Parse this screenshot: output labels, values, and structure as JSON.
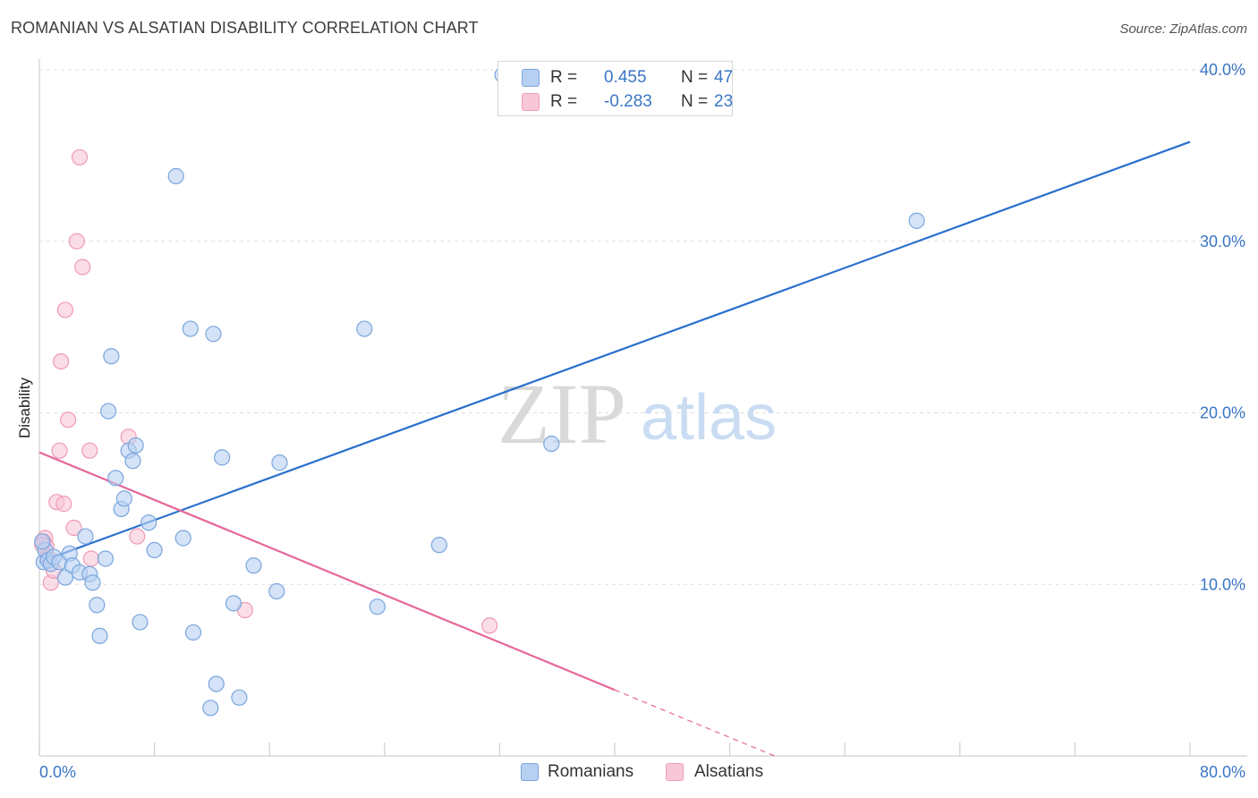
{
  "header": {
    "title": "ROMANIAN VS ALSATIAN DISABILITY CORRELATION CHART",
    "source": "Source: ZipAtlas.com"
  },
  "watermark": {
    "zip": "ZIP",
    "atlas": "atlas"
  },
  "legend": {
    "items": [
      {
        "r_label": "R =",
        "r_value": "0.455",
        "n_label": "N =",
        "n_value": "47"
      },
      {
        "r_label": "R =",
        "r_value": "-0.283",
        "n_label": "N =",
        "n_value": "23"
      }
    ]
  },
  "bottom_legend": {
    "romanians": "Romanians",
    "alsatians": "Alsatians"
  },
  "colors": {
    "romanians_fill": "#b7d0f2",
    "romanians_stroke": "#7aa5de",
    "romanians_line": "#2a6fcd",
    "alsatians_fill": "#f8c7d7",
    "alsatians_stroke": "#ef9ab6",
    "alsatians_line": "#e5679a",
    "tick_label": "#3a76c4",
    "grid": "#dedede"
  },
  "chart_data": {
    "type": "scatter",
    "title": "ROMANIAN VS ALSATIAN DISABILITY CORRELATION CHART",
    "xlabel": "",
    "ylabel": "Disability",
    "xlim": [
      0,
      80
    ],
    "ylim": [
      0,
      40
    ],
    "x_tick_labels": [
      "0.0%",
      "80.0%"
    ],
    "y_ticks": [
      10,
      20,
      30,
      40
    ],
    "y_tick_labels": [
      "10.0%",
      "20.0%",
      "30.0%",
      "40.0%"
    ],
    "grid": true,
    "series": [
      {
        "name": "Romanians",
        "r": 0.455,
        "n": 47,
        "trend": {
          "x0": 0,
          "y0": 11.3,
          "x1": 80,
          "y1": 35.8,
          "solid_to_x": 80
        },
        "points": [
          [
            0.3,
            11.3
          ],
          [
            0.4,
            12.0
          ],
          [
            0.6,
            11.4
          ],
          [
            0.8,
            11.2
          ],
          [
            1.0,
            11.6
          ],
          [
            1.4,
            11.3
          ],
          [
            1.8,
            10.4
          ],
          [
            2.1,
            11.8
          ],
          [
            2.3,
            11.1
          ],
          [
            2.8,
            10.7
          ],
          [
            3.2,
            12.8
          ],
          [
            3.5,
            10.6
          ],
          [
            3.7,
            10.1
          ],
          [
            4.0,
            8.8
          ],
          [
            4.2,
            7.0
          ],
          [
            4.6,
            11.5
          ],
          [
            4.8,
            20.1
          ],
          [
            5.0,
            23.3
          ],
          [
            5.3,
            16.2
          ],
          [
            5.7,
            14.4
          ],
          [
            5.9,
            15.0
          ],
          [
            6.2,
            17.8
          ],
          [
            6.5,
            17.2
          ],
          [
            6.7,
            18.1
          ],
          [
            7.0,
            7.8
          ],
          [
            7.6,
            13.6
          ],
          [
            8.0,
            12.0
          ],
          [
            9.5,
            33.8
          ],
          [
            10.0,
            12.7
          ],
          [
            10.5,
            24.9
          ],
          [
            10.7,
            7.2
          ],
          [
            11.9,
            2.8
          ],
          [
            12.1,
            24.6
          ],
          [
            12.3,
            4.2
          ],
          [
            12.7,
            17.4
          ],
          [
            13.5,
            8.9
          ],
          [
            13.9,
            3.4
          ],
          [
            14.9,
            11.1
          ],
          [
            16.5,
            9.6
          ],
          [
            16.7,
            17.1
          ],
          [
            22.6,
            24.9
          ],
          [
            23.5,
            8.7
          ],
          [
            27.8,
            12.3
          ],
          [
            32.2,
            39.7
          ],
          [
            35.6,
            18.2
          ],
          [
            61.0,
            31.2
          ],
          [
            0.2,
            12.5
          ]
        ]
      },
      {
        "name": "Alsatians",
        "r": -0.283,
        "n": 23,
        "trend": {
          "x0": 0,
          "y0": 17.7,
          "x1": 80,
          "y1": -10.0,
          "solid_to_x": 40
        },
        "points": [
          [
            0.3,
            12.5
          ],
          [
            0.4,
            12.7
          ],
          [
            0.5,
            12.2
          ],
          [
            0.6,
            11.6
          ],
          [
            0.8,
            10.1
          ],
          [
            1.0,
            10.8
          ],
          [
            1.2,
            14.8
          ],
          [
            1.4,
            17.8
          ],
          [
            1.5,
            23.0
          ],
          [
            1.7,
            14.7
          ],
          [
            1.8,
            26.0
          ],
          [
            2.0,
            19.6
          ],
          [
            2.4,
            13.3
          ],
          [
            2.6,
            30.0
          ],
          [
            2.8,
            34.9
          ],
          [
            3.0,
            28.5
          ],
          [
            3.5,
            17.8
          ],
          [
            3.6,
            11.5
          ],
          [
            6.2,
            18.6
          ],
          [
            6.8,
            12.8
          ],
          [
            14.3,
            8.5
          ],
          [
            31.3,
            7.6
          ],
          [
            0.2,
            12.3
          ]
        ]
      }
    ]
  }
}
